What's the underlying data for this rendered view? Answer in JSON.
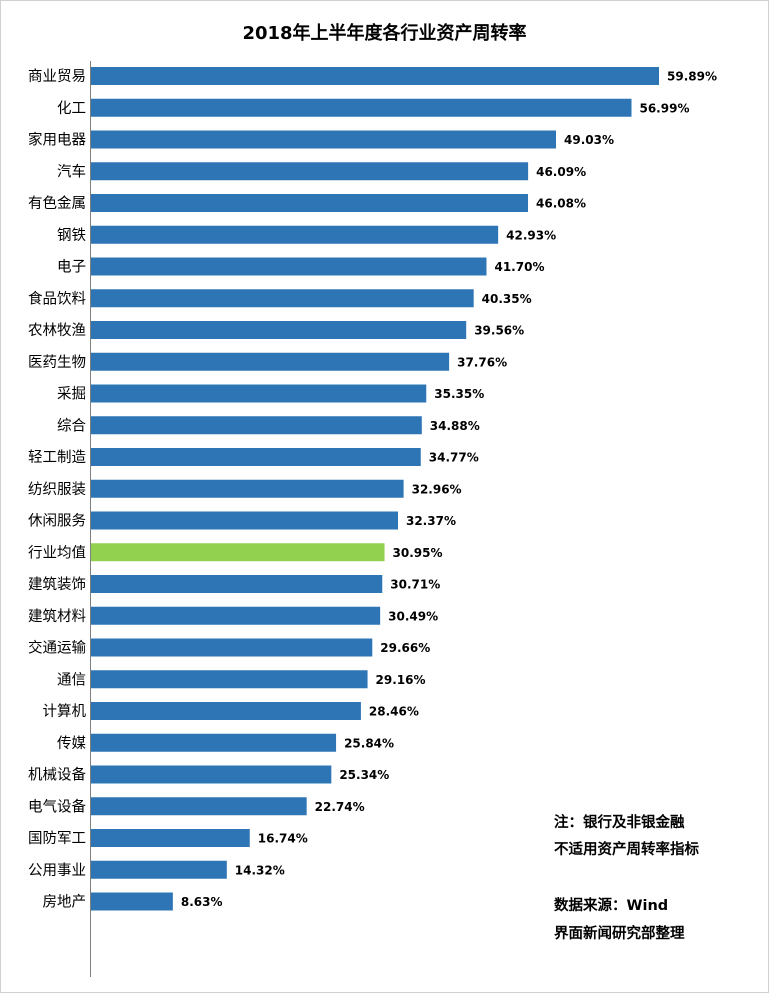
{
  "chart_data": {
    "type": "bar",
    "orientation": "horizontal",
    "title": "2018年上半年度各行业资产周转率",
    "categories": [
      "商业贸易",
      "化工",
      "家用电器",
      "汽车",
      "有色金属",
      "钢铁",
      "电子",
      "食品饮料",
      "农林牧渔",
      "医药生物",
      "采掘",
      "综合",
      "轻工制造",
      "纺织服装",
      "休闲服务",
      "行业均值",
      "建筑装饰",
      "建筑材料",
      "交通运输",
      "通信",
      "计算机",
      "传媒",
      "机械设备",
      "电气设备",
      "国防军工",
      "公用事业",
      "房地产"
    ],
    "values": [
      59.89,
      56.99,
      49.03,
      46.09,
      46.08,
      42.93,
      41.7,
      40.35,
      39.56,
      37.76,
      35.35,
      34.88,
      34.77,
      32.96,
      32.37,
      30.95,
      30.71,
      30.49,
      29.66,
      29.16,
      28.46,
      25.84,
      25.34,
      22.74,
      16.74,
      14.32,
      8.63
    ],
    "labels": [
      "59.89%",
      "56.99%",
      "49.03%",
      "46.09%",
      "46.08%",
      "42.93%",
      "41.70%",
      "40.35%",
      "39.56%",
      "37.76%",
      "35.35%",
      "34.88%",
      "34.77%",
      "32.96%",
      "32.37%",
      "30.95%",
      "30.71%",
      "30.49%",
      "29.66%",
      "29.16%",
      "28.46%",
      "25.84%",
      "25.34%",
      "22.74%",
      "16.74%",
      "14.32%",
      "8.63%"
    ],
    "unit": "%",
    "highlight_category": "行业均值",
    "colors": {
      "bar": "#2e75b6",
      "highlight": "#92d050",
      "axis": "#7f7f7f"
    },
    "grid": false,
    "legend": "none"
  },
  "notes": {
    "line1": "注：银行及非银金融",
    "line2": "不适用资产周转率指标",
    "source1": "数据来源：Wind",
    "source2": "界面新闻研究部整理"
  }
}
